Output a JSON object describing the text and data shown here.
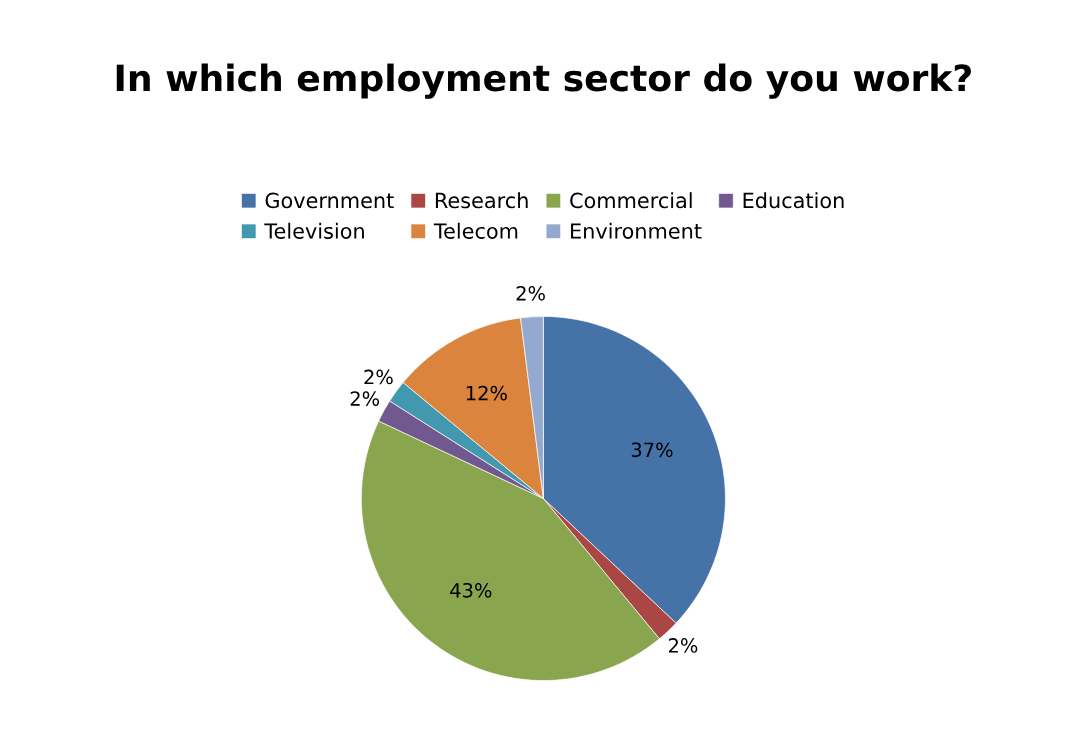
{
  "chart_data": {
    "type": "pie",
    "title": "In which employment sector do you work?",
    "categories": [
      "Government",
      "Research",
      "Commercial",
      "Education",
      "Television",
      "Telecom",
      "Environment"
    ],
    "values": [
      37,
      2,
      43,
      2,
      2,
      12,
      2
    ],
    "colors": [
      "#4572a7",
      "#aa4643",
      "#89a54e",
      "#71588f",
      "#4198af",
      "#db843d",
      "#93a9cf"
    ],
    "value_labels": [
      "37%",
      "2%",
      "43%",
      "2%",
      "2%",
      "12%",
      "2%"
    ],
    "legend": "top"
  }
}
